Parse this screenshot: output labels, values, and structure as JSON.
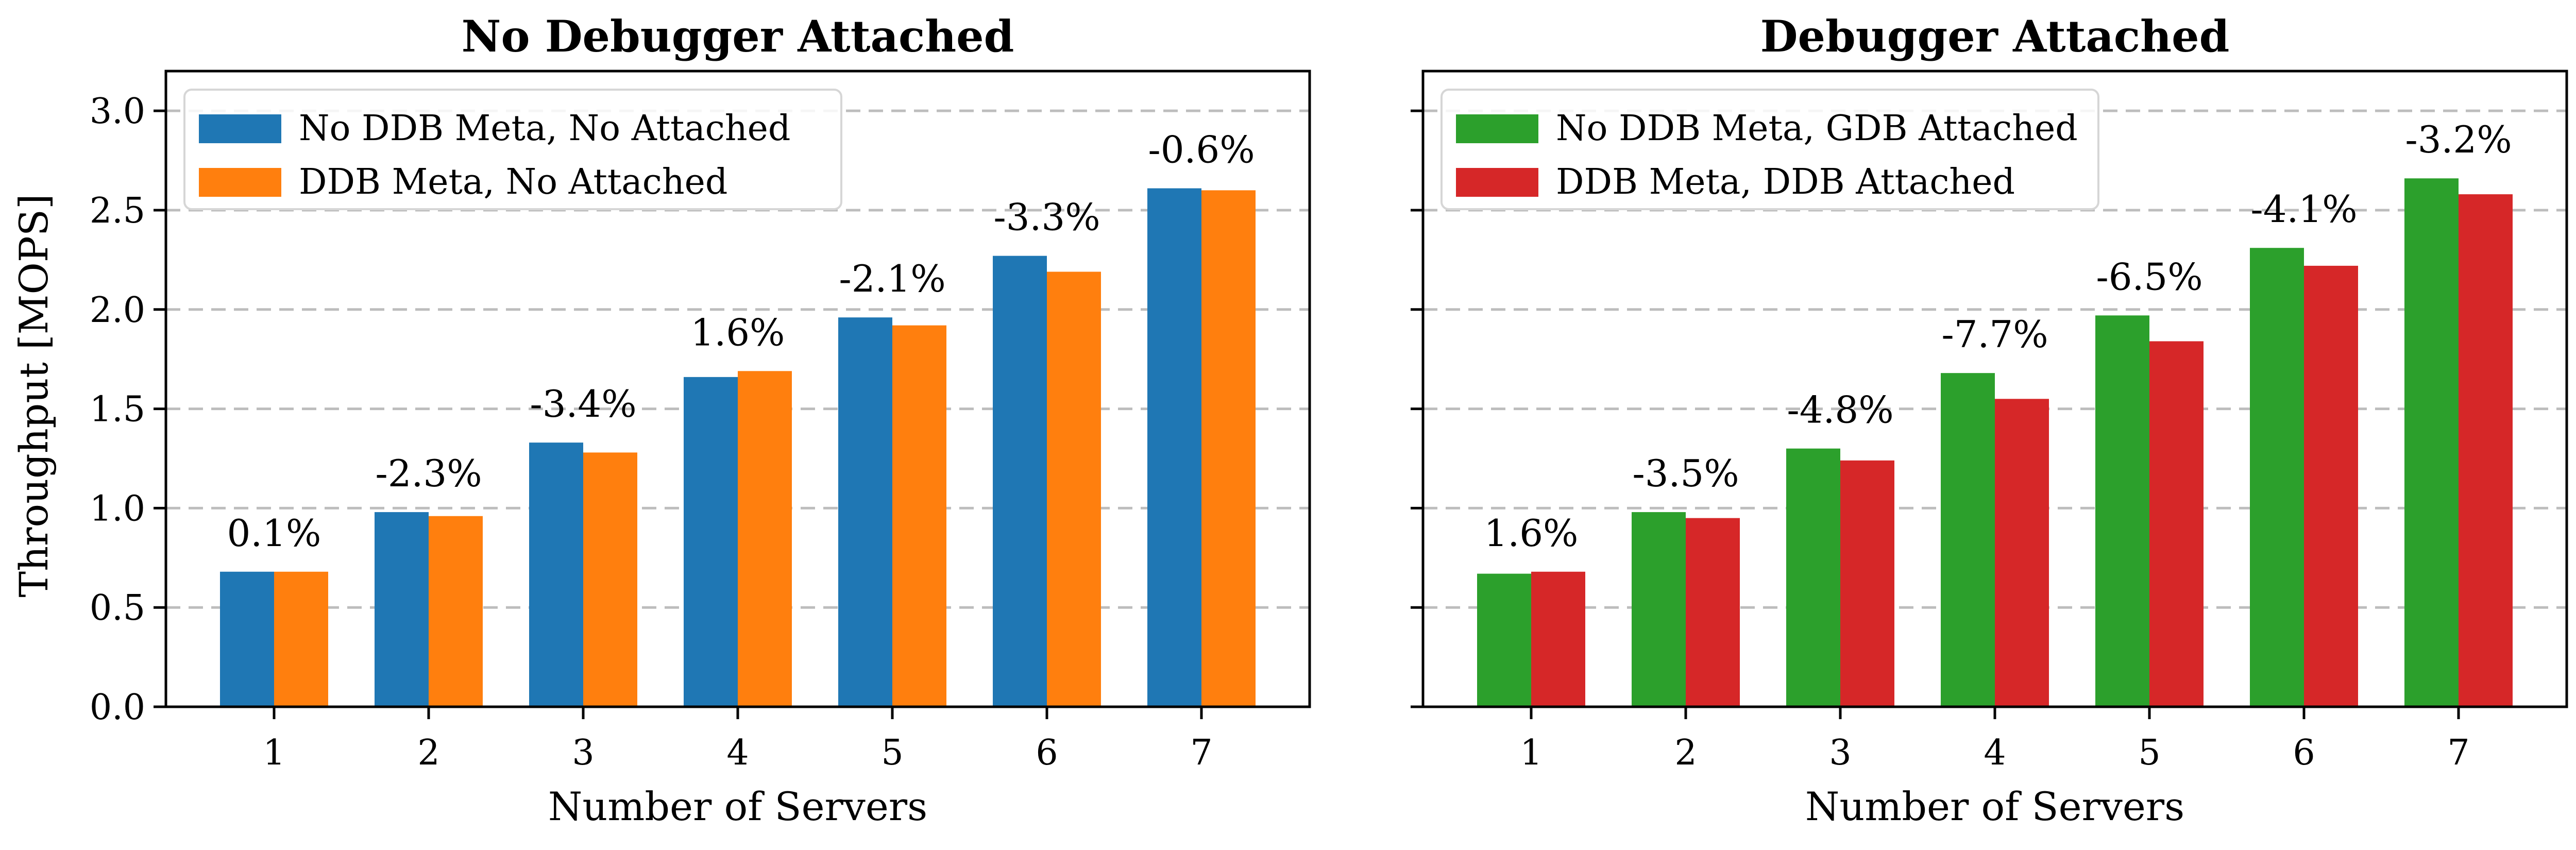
{
  "chart_data": [
    {
      "type": "bar",
      "title": "No Debugger Attached",
      "xlabel": "Number of Servers",
      "ylabel": "Throughput [MOPS]",
      "ylim": [
        0,
        3.2
      ],
      "yticks": [
        "0.0",
        "0.5",
        "1.0",
        "1.5",
        "2.0",
        "2.5",
        "3.0"
      ],
      "grid": "y-dashed",
      "legend_position": "top-left",
      "categories": [
        "1",
        "2",
        "3",
        "4",
        "5",
        "6",
        "7"
      ],
      "series": [
        {
          "name": "No DDB Meta, No Attached",
          "color": "#1f77b4",
          "values": [
            0.68,
            0.98,
            1.33,
            1.66,
            1.96,
            2.27,
            2.61
          ]
        },
        {
          "name": "DDB Meta, No Attached",
          "color": "#ff7f0e",
          "values": [
            0.68,
            0.96,
            1.28,
            1.69,
            1.92,
            2.19,
            2.6
          ]
        }
      ],
      "annotations": [
        "0.1%",
        "-2.3%",
        "-3.4%",
        "1.6%",
        "-2.1%",
        "-3.3%",
        "-0.6%"
      ]
    },
    {
      "type": "bar",
      "title": "Debugger Attached",
      "xlabel": "Number of Servers",
      "ylabel": "",
      "ylim": [
        0,
        3.2
      ],
      "yticks": [],
      "grid": "y-dashed",
      "legend_position": "top-left",
      "categories": [
        "1",
        "2",
        "3",
        "4",
        "5",
        "6",
        "7"
      ],
      "series": [
        {
          "name": "No DDB Meta, GDB Attached",
          "color": "#2ca02c",
          "values": [
            0.67,
            0.98,
            1.3,
            1.68,
            1.97,
            2.31,
            2.66
          ]
        },
        {
          "name": "DDB Meta, DDB Attached",
          "color": "#d62728",
          "values": [
            0.68,
            0.95,
            1.24,
            1.55,
            1.84,
            2.22,
            2.58
          ]
        }
      ],
      "annotations": [
        "1.6%",
        "-3.5%",
        "-4.8%",
        "-7.7%",
        "-6.5%",
        "-4.1%",
        "-3.2%"
      ]
    }
  ]
}
